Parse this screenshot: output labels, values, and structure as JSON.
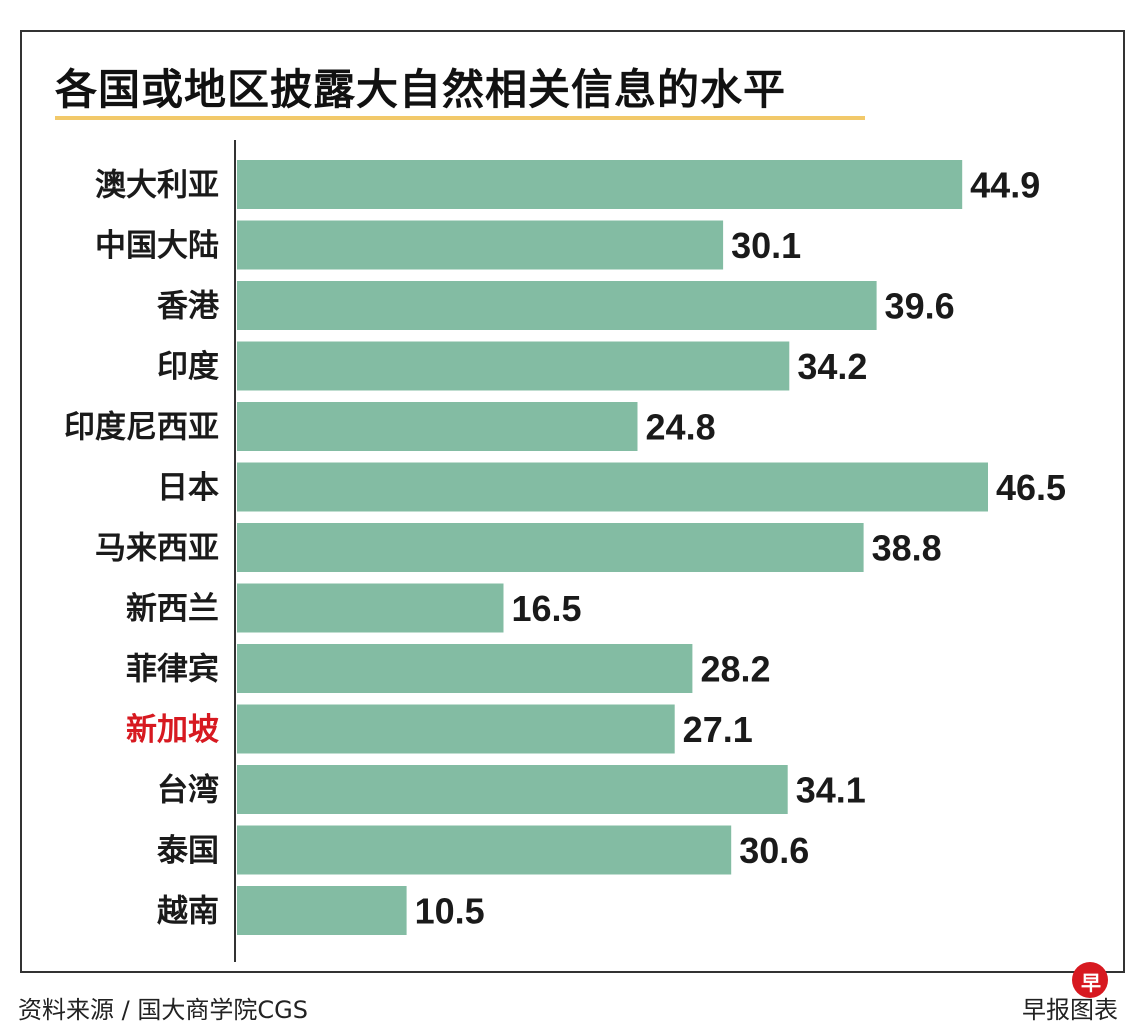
{
  "chart_data": {
    "type": "bar",
    "orientation": "horizontal",
    "title": "各国或地区披露大自然相关信息的水平",
    "categories": [
      "澳大利亚",
      "中国大陆",
      "香港",
      "印度",
      "印度尼西亚",
      "日本",
      "马来西亚",
      "新西兰",
      "菲律宾",
      "新加坡",
      "台湾",
      "泰国",
      "越南"
    ],
    "values": [
      44.9,
      30.1,
      39.6,
      34.2,
      24.8,
      46.5,
      38.8,
      16.5,
      28.2,
      27.1,
      34.1,
      30.6,
      10.5
    ],
    "value_labels": [
      "44.9",
      "30.1",
      "39.6",
      "34.2",
      "24.8",
      "46.5",
      "38.8",
      "16.5",
      "28.2",
      "27.1",
      "34.1",
      "30.6",
      "10.5"
    ],
    "highlight_category": "新加坡",
    "xlim": [
      0,
      46.5
    ],
    "grid": false,
    "legend": "none"
  },
  "colors": {
    "bar": "#83bca3",
    "label": "#1a1a1a",
    "highlight_label": "#d71920",
    "axis": "#333333"
  },
  "footer": {
    "source": "资料来源 / 国大商学院CGS",
    "credit": "早报图表",
    "logo_glyph": "早"
  }
}
